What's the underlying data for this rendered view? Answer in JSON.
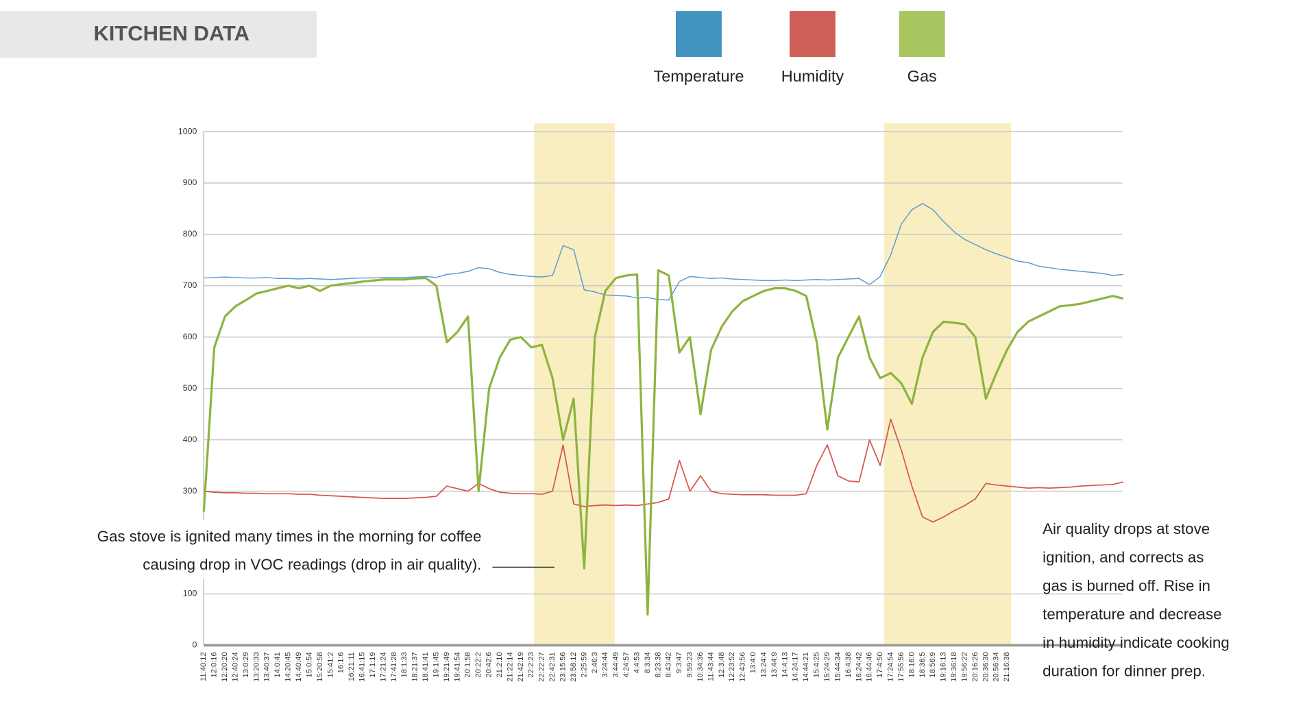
{
  "chart_data": {
    "type": "line",
    "title": "KITCHEN DATA",
    "categories": [
      "11:40:12",
      "12:0:16",
      "12:20:20",
      "12:40:24",
      "13:0:29",
      "13:20:33",
      "13:40:37",
      "14:0:41",
      "14:20:45",
      "14:40:49",
      "15:0:54",
      "15:20:58",
      "15:41:2",
      "16:1:6",
      "16:21:11",
      "16:41:15",
      "17:1:19",
      "17:21:24",
      "17:41:28",
      "18:1:33",
      "18:21:37",
      "18:41:41",
      "19:1:45",
      "19:21:49",
      "19:41:54",
      "20:1:58",
      "20:22:2",
      "20:42:6",
      "21:2:10",
      "21:22:14",
      "21:42:19",
      "22:2:23",
      "22:22:27",
      "22:42:31",
      "23:15:56",
      "23:58:12",
      "2:25:59",
      "2:46:3",
      "3:24:44",
      "3:44:49",
      "4:24:57",
      "4:4:53",
      "8:3:34",
      "8:23:38",
      "8:43:42",
      "9:3:47",
      "9:59:23",
      "10:34:36",
      "11:43:44",
      "12:3:48",
      "12:23:52",
      "12:43:56",
      "13:4:0",
      "13:24:4",
      "13:44:9",
      "14:4:13",
      "14:24:17",
      "14:44:21",
      "15:4:25",
      "15:24:29",
      "15:44:34",
      "16:4:38",
      "16:24:42",
      "16:44:46",
      "17:4:50",
      "17:24:54",
      "17:55:56",
      "18:16:0",
      "18:36:5",
      "18:56:9",
      "19:16:13",
      "19:36:18",
      "19:56:22",
      "20:16:26",
      "20:36:30",
      "20:56:34",
      "21:16:38",
      null,
      null,
      null,
      null,
      null,
      null,
      null,
      null,
      null,
      null,
      null
    ],
    "series": [
      {
        "name": "Temperature",
        "color": "#4393bf",
        "line_color": "#5b9bd5",
        "values": [
          715,
          716,
          717,
          716,
          715,
          715,
          716,
          714,
          714,
          713,
          714,
          713,
          712,
          713,
          714,
          715,
          715,
          716,
          716,
          716,
          717,
          718,
          716,
          722,
          724,
          728,
          735,
          733,
          726,
          722,
          720,
          718,
          717,
          720,
          778,
          770,
          692,
          688,
          682,
          681,
          680,
          676,
          677,
          673,
          672,
          708,
          718,
          716,
          714,
          715,
          713,
          712,
          711,
          710,
          710,
          711,
          710,
          711,
          712,
          711,
          712,
          713,
          714,
          702,
          718,
          760,
          820,
          848,
          860,
          848,
          825,
          805,
          790,
          780,
          770,
          762,
          755,
          748,
          745,
          738,
          735,
          732,
          730,
          728,
          726,
          724,
          720,
          722
        ]
      },
      {
        "name": "Humidity",
        "color": "#cd5f58",
        "line_color": "#d9534f",
        "values": [
          300,
          298,
          297,
          297,
          296,
          296,
          295,
          295,
          295,
          294,
          294,
          292,
          291,
          290,
          289,
          288,
          287,
          286,
          286,
          286,
          287,
          288,
          290,
          310,
          305,
          300,
          315,
          305,
          298,
          296,
          295,
          295,
          294,
          300,
          390,
          275,
          270,
          272,
          273,
          272,
          273,
          272,
          275,
          278,
          285,
          360,
          300,
          330,
          300,
          295,
          294,
          293,
          293,
          293,
          292,
          292,
          292,
          295,
          350,
          390,
          330,
          320,
          318,
          400,
          350,
          440,
          380,
          310,
          250,
          240,
          250,
          262,
          272,
          285,
          315,
          312,
          310,
          308,
          306,
          307,
          306,
          307,
          308,
          310,
          311,
          312,
          313,
          318
        ]
      },
      {
        "name": "Gas",
        "color": "#a8c55f",
        "line_color": "#8db43f",
        "values": [
          260,
          580,
          640,
          660,
          672,
          685,
          690,
          695,
          700,
          695,
          700,
          690,
          700,
          703,
          705,
          708,
          710,
          712,
          712,
          712,
          714,
          715,
          700,
          590,
          610,
          640,
          300,
          500,
          560,
          595,
          600,
          580,
          585,
          520,
          400,
          480,
          150,
          600,
          690,
          715,
          720,
          722,
          60,
          730,
          720,
          570,
          600,
          450,
          575,
          620,
          650,
          670,
          680,
          690,
          695,
          695,
          690,
          680,
          590,
          420,
          560,
          600,
          640,
          560,
          520,
          530,
          510,
          470,
          560,
          610,
          630,
          628,
          625,
          600,
          480,
          530,
          575,
          610,
          630,
          640,
          650,
          660,
          662,
          665,
          670,
          675,
          680,
          675
        ]
      }
    ],
    "ylim": [
      0,
      1000
    ],
    "yticks": [
      0,
      100,
      300,
      400,
      500,
      600,
      700,
      800,
      900,
      1000
    ],
    "grid": true,
    "legend": "top",
    "annotations": [
      {
        "lines": [
          "Gas stove is ignited many times in the morning for coffee",
          "causing drop in VOC readings (drop in air quality)."
        ]
      },
      {
        "lines": [
          "Air quality drops at stove",
          "ignition, and corrects as",
          "gas is burned off. Rise in",
          "temperature and decrease",
          "in humidity indicate cooking",
          "duration for dinner prep."
        ]
      }
    ]
  }
}
